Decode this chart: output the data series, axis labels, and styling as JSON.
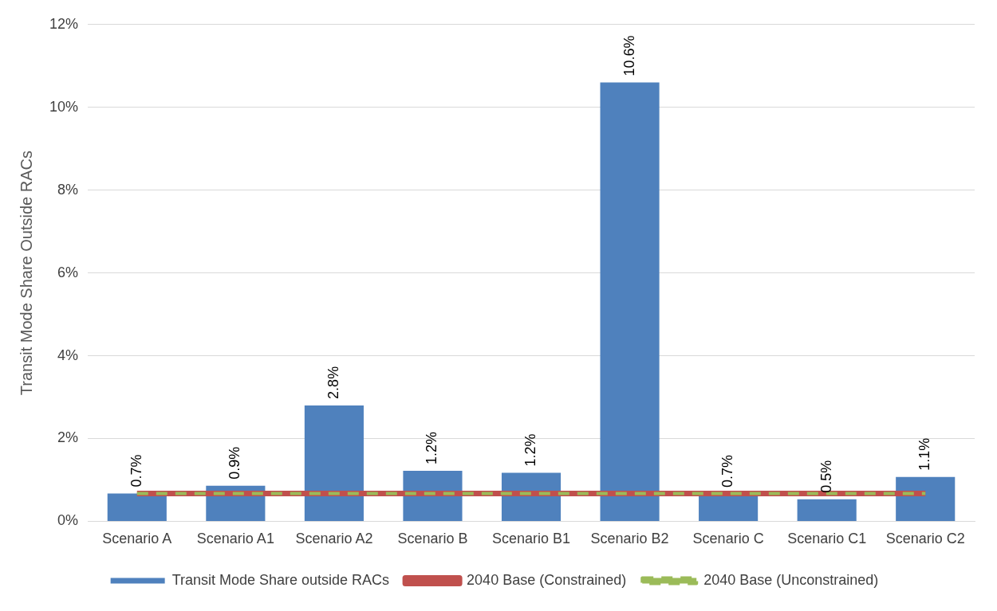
{
  "chart_data": {
    "type": "bar",
    "ylabel": "Transit Mode Share Outside RACs",
    "categories": [
      "Scenario A",
      "Scenario A1",
      "Scenario A2",
      "Scenario B",
      "Scenario B1",
      "Scenario B2",
      "Scenario C",
      "Scenario C1",
      "Scenario C2"
    ],
    "series": [
      {
        "name": "Transit Mode Share outside RACs",
        "color": "#4f81bd",
        "values": [
          0.67,
          0.86,
          2.8,
          1.22,
          1.17,
          10.6,
          0.66,
          0.53,
          1.07
        ],
        "value_labels": [
          "0.7%",
          "0.9%",
          "2.8%",
          "1.2%",
          "1.2%",
          "10.6%",
          "0.7%",
          "0.5%",
          "1.1%"
        ]
      },
      {
        "name": "2040 Base (Constrained)",
        "type": "line",
        "color": "#c0504d",
        "line_style": "solid",
        "values": [
          0.67,
          0.67,
          0.67,
          0.67,
          0.67,
          0.67,
          0.67,
          0.67,
          0.67
        ]
      },
      {
        "name": "2040 Base (Unconstrained)",
        "type": "line",
        "color": "#9bbb59",
        "line_style": "dashed",
        "values": [
          0.67,
          0.67,
          0.67,
          0.67,
          0.67,
          0.67,
          0.67,
          0.67,
          0.67
        ]
      }
    ],
    "ylim": [
      0,
      12
    ],
    "yticks": [
      {
        "value": 0,
        "label": "0%"
      },
      {
        "value": 2,
        "label": "2%"
      },
      {
        "value": 4,
        "label": "4%"
      },
      {
        "value": 6,
        "label": "6%"
      },
      {
        "value": 8,
        "label": "8%"
      },
      {
        "value": 10,
        "label": "10%"
      },
      {
        "value": 12,
        "label": "12%"
      }
    ],
    "grid": "y",
    "legend": "bottom",
    "marker": "none"
  }
}
